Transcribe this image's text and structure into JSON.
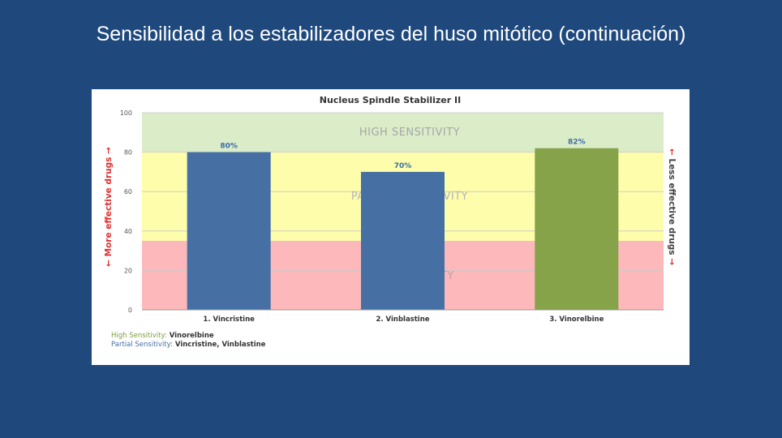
{
  "slide": {
    "title": "Sensibilidad a los estabilizadores del huso mitótico (continuación)"
  },
  "colors": {
    "background": "#1f497d",
    "high_band": "#dbecc9",
    "partial_band": "#fdfdab",
    "no_band": "#fdb8bb",
    "bar_blue": "#4670a4",
    "bar_green": "#86a34a",
    "arrow_red": "#e03030"
  },
  "chart_data": {
    "type": "bar",
    "title": "Nucleus Spindle Stabilizer II",
    "categories": [
      "1. Vincristine",
      "2. Vinblastine",
      "3. Vinorelbine"
    ],
    "values": [
      80,
      70,
      82
    ],
    "value_labels": [
      "80%",
      "70%",
      "82%"
    ],
    "bar_colors": [
      "#4670a4",
      "#4670a4",
      "#86a34a"
    ],
    "ylim": [
      0,
      100
    ],
    "yticks": [
      "0",
      "20",
      "40",
      "60",
      "80",
      "100"
    ],
    "bands": [
      {
        "label": "HIGH SENSITIVITY",
        "from": 80,
        "to": 100,
        "color": "#dbecc9"
      },
      {
        "label": "PARTIAL SENSITIVITY",
        "from": 35,
        "to": 80,
        "color": "#fdfdab"
      },
      {
        "label": "NO SENSITIVITY",
        "from": 0,
        "to": 35,
        "color": "#fdb8bb"
      }
    ],
    "left_side_label": "← More effective drugs →",
    "right_side_label": "← Less effective drugs →",
    "grid": true
  },
  "footnotes": {
    "high_key": "High Sensitivity:",
    "high_value": "Vinorelbine",
    "partial_key": "Partial Sensitivity:",
    "partial_value": "Vincristine, Vinblastine"
  }
}
